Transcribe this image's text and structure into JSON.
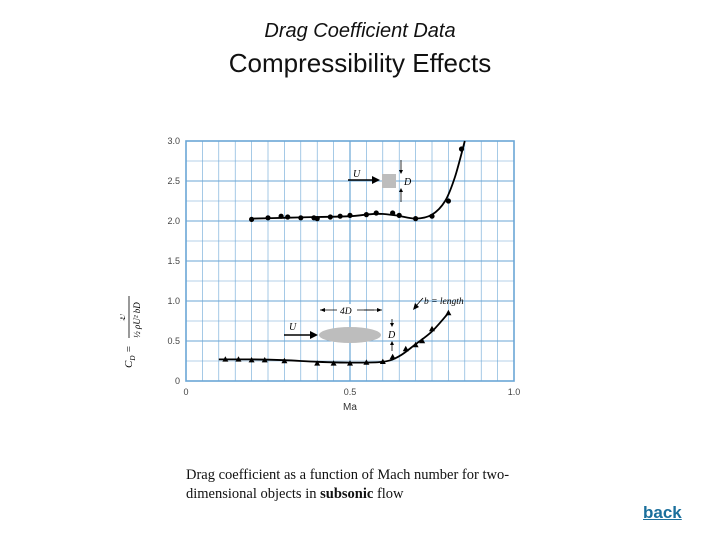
{
  "header": {
    "subtitle": "Drag Coefficient Data",
    "title": "Compressibility Effects"
  },
  "caption": {
    "part1": "Drag coefficient as a function of Mach number for two-dimensional objects in ",
    "bold": "subsonic",
    "part2": " flow"
  },
  "nav": {
    "back_label": "back"
  },
  "chart_data": {
    "type": "scatter",
    "xlabel": "Ma",
    "ylabel": "C_D = 𝔇 / (½ρU²bD)",
    "xlim": [
      0,
      1.0
    ],
    "ylim": [
      0,
      3.0
    ],
    "x_ticks": [
      "0",
      "0.5",
      "1.0"
    ],
    "y_ticks": [
      "0",
      "0.5",
      "1.0",
      "1.5",
      "2.0",
      "2.5",
      "3.0"
    ],
    "grid": true,
    "colors": {
      "grid": "#6aa6d6",
      "axis": "#6aa6d6",
      "data": "#000000",
      "shape": "#bdbdbd"
    },
    "series": [
      {
        "marker": "circle",
        "points": [
          [
            0.2,
            2.02
          ],
          [
            0.25,
            2.04
          ],
          [
            0.29,
            2.06
          ],
          [
            0.31,
            2.05
          ],
          [
            0.35,
            2.04
          ],
          [
            0.39,
            2.04
          ],
          [
            0.4,
            2.03
          ],
          [
            0.44,
            2.05
          ],
          [
            0.47,
            2.06
          ],
          [
            0.5,
            2.07
          ],
          [
            0.55,
            2.08
          ],
          [
            0.58,
            2.1
          ],
          [
            0.63,
            2.1
          ],
          [
            0.65,
            2.07
          ],
          [
            0.7,
            2.03
          ],
          [
            0.75,
            2.06
          ],
          [
            0.8,
            2.25
          ],
          [
            0.84,
            2.9
          ]
        ],
        "curve": [
          [
            0.2,
            2.03
          ],
          [
            0.3,
            2.04
          ],
          [
            0.4,
            2.05
          ],
          [
            0.5,
            2.06
          ],
          [
            0.58,
            2.09
          ],
          [
            0.64,
            2.07
          ],
          [
            0.7,
            2.03
          ],
          [
            0.75,
            2.08
          ],
          [
            0.79,
            2.25
          ],
          [
            0.82,
            2.55
          ],
          [
            0.85,
            3.0
          ]
        ]
      },
      {
        "marker": "triangle",
        "points": [
          [
            0.12,
            0.27
          ],
          [
            0.16,
            0.27
          ],
          [
            0.2,
            0.26
          ],
          [
            0.24,
            0.26
          ],
          [
            0.3,
            0.25
          ],
          [
            0.4,
            0.22
          ],
          [
            0.45,
            0.22
          ],
          [
            0.5,
            0.22
          ],
          [
            0.55,
            0.23
          ],
          [
            0.6,
            0.24
          ],
          [
            0.63,
            0.3
          ],
          [
            0.67,
            0.4
          ],
          [
            0.7,
            0.45
          ],
          [
            0.72,
            0.5
          ],
          [
            0.75,
            0.65
          ],
          [
            0.8,
            0.85
          ]
        ],
        "curve": [
          [
            0.1,
            0.27
          ],
          [
            0.2,
            0.27
          ],
          [
            0.3,
            0.26
          ],
          [
            0.4,
            0.24
          ],
          [
            0.5,
            0.23
          ],
          [
            0.6,
            0.24
          ],
          [
            0.65,
            0.31
          ],
          [
            0.7,
            0.46
          ],
          [
            0.75,
            0.62
          ],
          [
            0.8,
            0.85
          ]
        ]
      }
    ],
    "annotations": {
      "square": {
        "flow": "U",
        "drag": "𝔇",
        "size": "D"
      },
      "ellipse": {
        "flow": "U",
        "drag": "𝔇",
        "size": "D",
        "width": "4D",
        "span": "b = length"
      }
    }
  }
}
